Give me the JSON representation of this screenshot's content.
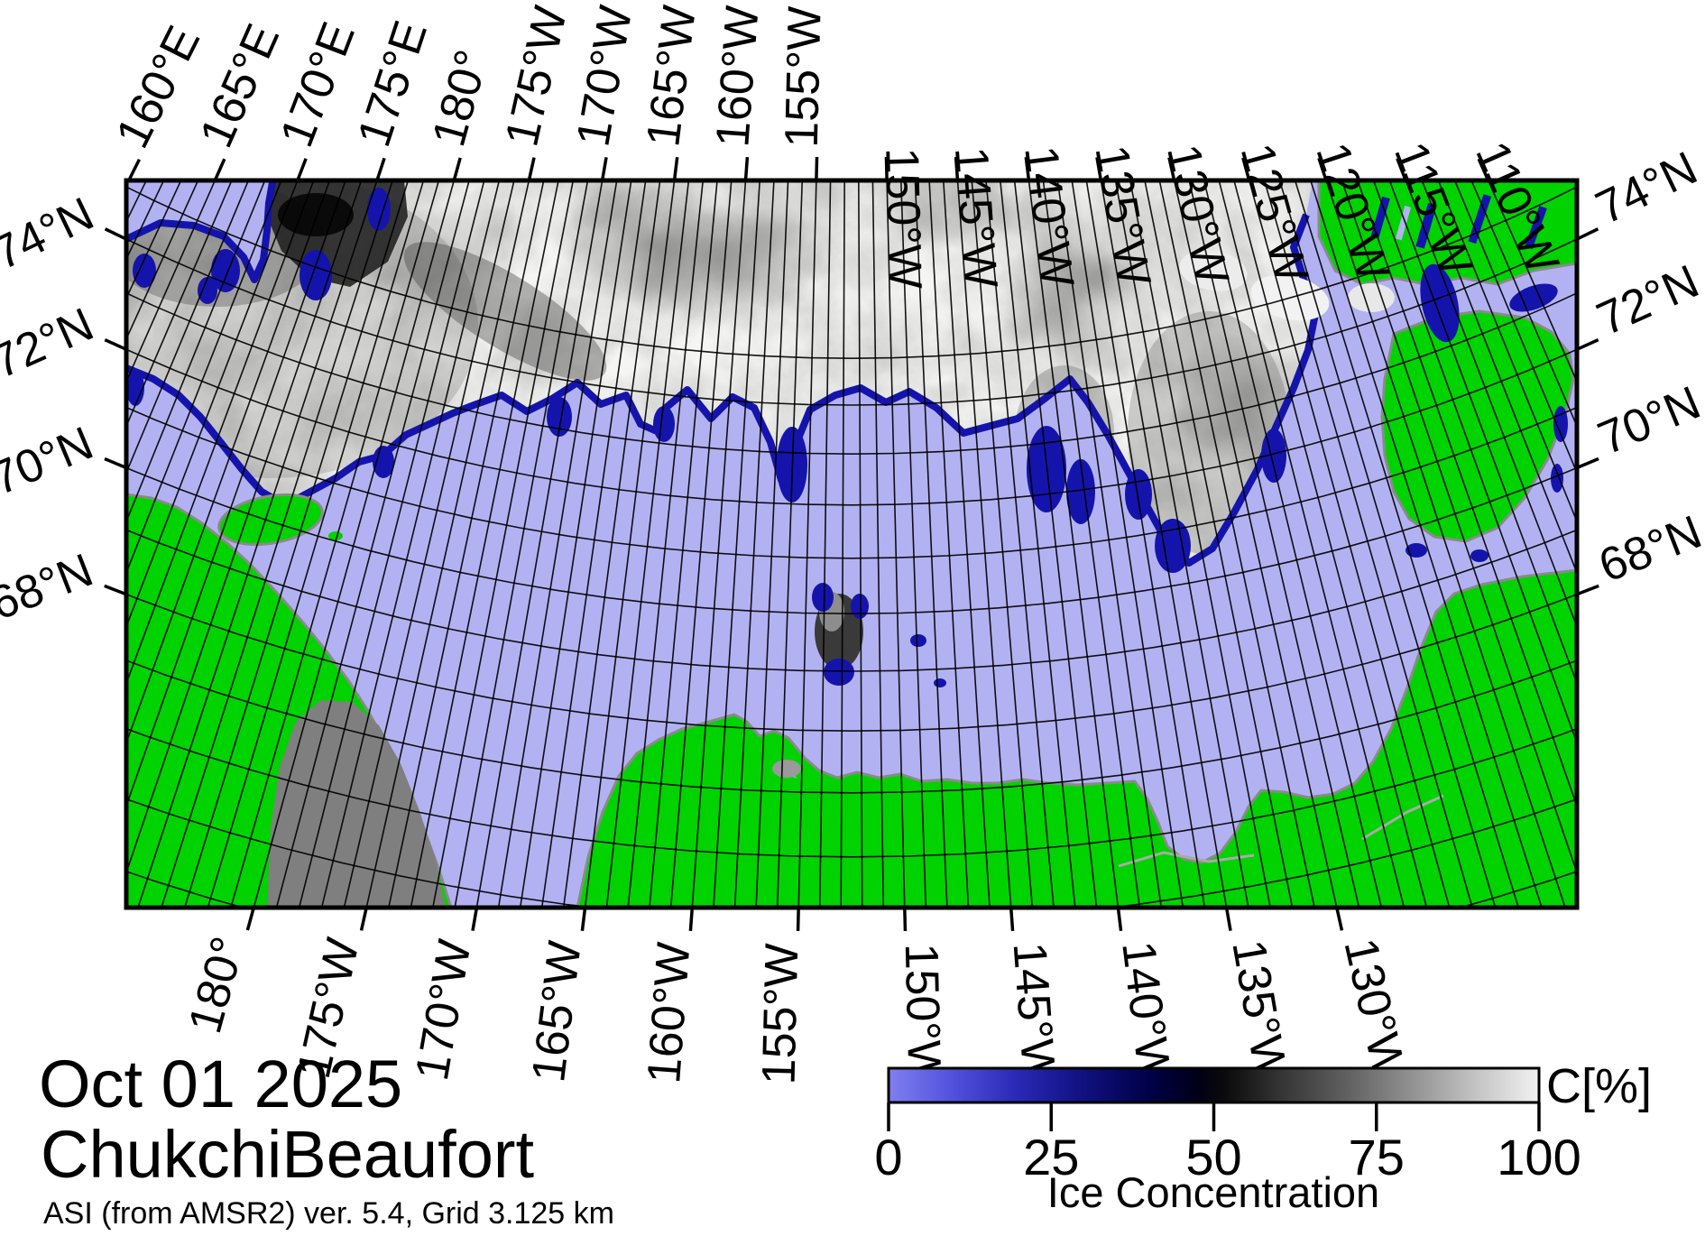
{
  "header": {
    "date": "Oct 01 2025",
    "region": "ChukchiBeaufort",
    "source": "ASI (from AMSR2) ver. 5.4,  Grid 3.125 km"
  },
  "axes": {
    "top": [
      {
        "t": "160°E",
        "lon": 200
      },
      {
        "t": "165°E",
        "lon": 195
      },
      {
        "t": "170°E",
        "lon": 190
      },
      {
        "t": "175°E",
        "lon": 185
      },
      {
        "t": "180°",
        "lon": 180
      },
      {
        "t": "175°W",
        "lon": 175
      },
      {
        "t": "170°W",
        "lon": 170
      },
      {
        "t": "165°W",
        "lon": 165
      },
      {
        "t": "160°W",
        "lon": 160
      },
      {
        "t": "155°W",
        "lon": 155
      },
      {
        "t": "150°W",
        "lon": 150
      },
      {
        "t": "145°W",
        "lon": 145
      },
      {
        "t": "140°W",
        "lon": 140
      },
      {
        "t": "135°W",
        "lon": 135
      },
      {
        "t": "130°W",
        "lon": 130
      },
      {
        "t": "125°W",
        "lon": 125
      },
      {
        "t": "120°W",
        "lon": 120
      },
      {
        "t": "115°W",
        "lon": 115
      },
      {
        "t": "110°W",
        "lon": 110
      }
    ],
    "bottom": [
      {
        "t": "180°",
        "lon": 180
      },
      {
        "t": "175°W",
        "lon": 175
      },
      {
        "t": "170°W",
        "lon": 170
      },
      {
        "t": "165°W",
        "lon": 165
      },
      {
        "t": "160°W",
        "lon": 160
      },
      {
        "t": "155°W",
        "lon": 155
      },
      {
        "t": "150°W",
        "lon": 150
      },
      {
        "t": "145°W",
        "lon": 145
      },
      {
        "t": "140°W",
        "lon": 140
      },
      {
        "t": "135°W",
        "lon": 135
      },
      {
        "t": "130°W",
        "lon": 130
      }
    ],
    "left": [
      {
        "t": "74°N",
        "lat": 74
      },
      {
        "t": "72°N",
        "lat": 72
      },
      {
        "t": "70°N",
        "lat": 70
      },
      {
        "t": "68°N",
        "lat": 68
      }
    ],
    "right": [
      {
        "t": "74°N",
        "lat": 74
      },
      {
        "t": "72°N",
        "lat": 72
      },
      {
        "t": "70°N",
        "lat": 70
      },
      {
        "t": "68°N",
        "lat": 68
      }
    ]
  },
  "graticule": {
    "lonw_min": 110,
    "lonw_max": 200,
    "meridian_step": 1,
    "lat_min": 64,
    "lat_max": 75,
    "parallel_step": 1
  },
  "colorbar": {
    "ticks": [
      "0",
      "25",
      "50",
      "75",
      "100"
    ],
    "tick_values": [
      0,
      25,
      50,
      75,
      100
    ],
    "unit": "C[%]",
    "label": "Ice Concentration",
    "stops": [
      [
        "0%",
        "#8080f0"
      ],
      [
        "10%",
        "#5050dc"
      ],
      [
        "20%",
        "#2828b4"
      ],
      [
        "30%",
        "#101080"
      ],
      [
        "40%",
        "#000048"
      ],
      [
        "48%",
        "#000014"
      ],
      [
        "52%",
        "#0c0c0c"
      ],
      [
        "60%",
        "#333333"
      ],
      [
        "70%",
        "#5e5e5e"
      ],
      [
        "80%",
        "#8f8f8f"
      ],
      [
        "90%",
        "#c2c2c2"
      ],
      [
        "100%",
        "#f2f2f2"
      ]
    ]
  },
  "palette": {
    "open_water": "#b2b2f2",
    "land": "#00d300",
    "ice_fringe": "#1414ad",
    "ice_base": "#f5f5f3",
    "no_data": "#7f7f7f",
    "coastline": "#8a8a8a",
    "frame": "#000000"
  }
}
